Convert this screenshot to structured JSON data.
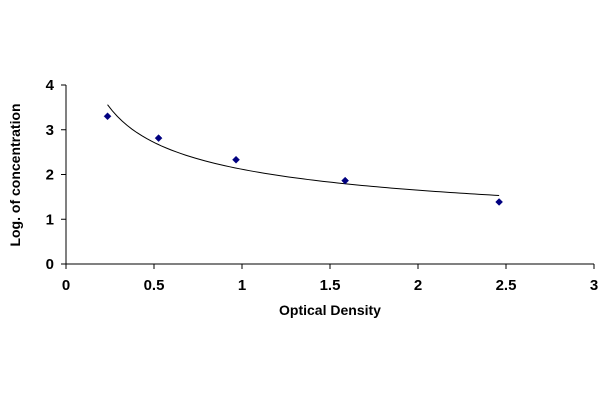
{
  "chart_data": {
    "type": "scatter",
    "title": "",
    "xlabel": "Optical Density",
    "ylabel": "Log. of concentration",
    "xlim": [
      0,
      3
    ],
    "ylim": [
      0,
      4
    ],
    "x_ticks": [
      "0",
      "0.5",
      "1",
      "1.5",
      "2",
      "2.5",
      "3"
    ],
    "y_ticks": [
      "0",
      "1",
      "2",
      "3",
      "4"
    ],
    "grid": false,
    "legend": "none",
    "series": [
      {
        "x": [
          0.236,
          0.526,
          0.966,
          1.586,
          2.461
        ],
        "y": [
          3.301,
          2.813,
          2.33,
          1.863,
          1.386
        ],
        "marker": "diamond",
        "color": "#000080",
        "fit": "power curve"
      }
    ],
    "line_color": "#000000"
  }
}
